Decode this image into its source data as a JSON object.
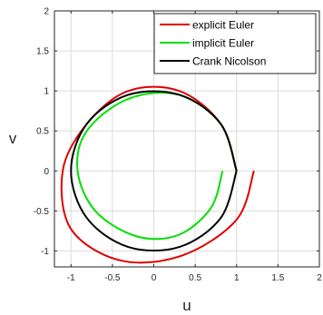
{
  "chart_data": {
    "type": "line",
    "title": "",
    "xlabel": "u",
    "ylabel": "v",
    "xlim": [
      -1.2,
      2
    ],
    "ylim": [
      -1.2,
      2
    ],
    "xticks": [
      -1,
      -0.5,
      0,
      0.5,
      1,
      1.5,
      2
    ],
    "xtick_labels": [
      "-1",
      "-0.5",
      "0",
      "0.5",
      "1",
      "1.5",
      "2"
    ],
    "yticks": [
      -1,
      -0.5,
      0,
      0.5,
      1,
      1.5,
      2
    ],
    "ytick_labels": [
      "-1",
      "-0.5",
      "0",
      "0.5",
      "1",
      "1.5",
      "2"
    ],
    "grid": true,
    "legend_position": "top-right",
    "series": [
      {
        "name": "explicit Euler",
        "color": "#e00000",
        "x": [
          1.0,
          0.8085,
          0.3091,
          -0.3091,
          -0.8085,
          -1.1,
          -1.0,
          -0.4,
          0.3434,
          0.9989,
          1.21
        ],
        "y": [
          0.0,
          0.5874,
          1.0,
          1.0,
          0.5874,
          0.0,
          -0.7265,
          -1.12,
          -1.057,
          -0.6115,
          0.0
        ]
      },
      {
        "name": "implicit Euler",
        "color": "#00e000",
        "x": [
          1.0,
          0.8085,
          0.3091,
          -0.3091,
          -0.8085,
          -0.92,
          -0.7,
          -0.2,
          0.3,
          0.6918,
          0.83
        ],
        "y": [
          0.0,
          0.5874,
          0.95,
          0.9,
          0.5,
          0.0,
          -0.5086,
          -0.82,
          -0.8,
          -0.46,
          0.0
        ]
      },
      {
        "name": "Crank Nicolson",
        "color": "#000000",
        "x": [
          1.0,
          0.809,
          0.309,
          -0.309,
          -0.809,
          -1.0,
          -0.809,
          -0.309,
          0.309,
          0.809,
          1.0
        ],
        "y": [
          0.0,
          0.588,
          0.951,
          0.951,
          0.588,
          0.0,
          -0.588,
          -0.951,
          -0.951,
          -0.588,
          0.0
        ]
      }
    ]
  }
}
